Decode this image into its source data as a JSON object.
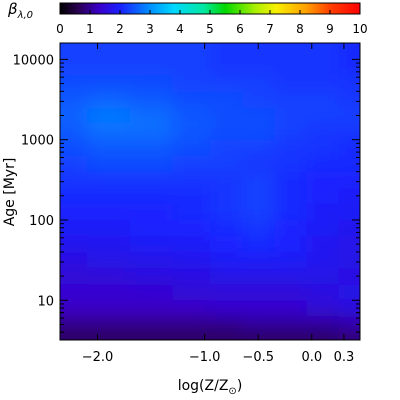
{
  "chart_data": {
    "type": "heatmap",
    "colorbar": {
      "label_symbol": "β",
      "label_subscript": "λ,0",
      "range": [
        0,
        10
      ],
      "ticks": [
        "0",
        "1",
        "2",
        "3",
        "4",
        "5",
        "6",
        "7",
        "8",
        "9",
        "10"
      ],
      "placement": "top"
    },
    "x_axis": {
      "label_main": "log(Z/Z",
      "label_subscript": "⊙",
      "label_close": ")",
      "range": [
        -2.35,
        0.45
      ],
      "ticks": [
        {
          "value": -2.0,
          "label": "−2.0"
        },
        {
          "value": -1.0,
          "label": "−1.0"
        },
        {
          "value": -0.5,
          "label": "−0.5"
        },
        {
          "value": 0.0,
          "label": "0.0"
        },
        {
          "value": 0.3,
          "label": "0.3"
        }
      ]
    },
    "y_axis": {
      "label": "Age [Myr]",
      "scale": "log",
      "range": [
        3.2,
        16000
      ],
      "ticks": [
        {
          "value": 10,
          "label": "10"
        },
        {
          "value": 100,
          "label": "100"
        },
        {
          "value": 1000,
          "label": "1000"
        },
        {
          "value": 10000,
          "label": "10000"
        }
      ]
    },
    "field_description_values": {
      "log_age_rows": [
        3.9,
        3.7,
        3.5,
        3.3,
        3.1,
        2.9,
        2.7,
        2.5,
        2.3,
        2.1,
        1.9,
        1.7,
        1.5,
        1.3,
        1.1,
        0.9,
        0.7,
        0.5
      ],
      "logz_cols": [
        -2.3,
        -1.9,
        -1.5,
        -1.1,
        -0.8,
        -0.5,
        -0.2,
        0.1,
        0.4
      ],
      "beta": [
        [
          2.3,
          2.3,
          2.3,
          2.3,
          2.2,
          2.2,
          2.2,
          2.2,
          2.1
        ],
        [
          2.4,
          2.4,
          2.4,
          2.3,
          2.3,
          2.3,
          2.2,
          2.2,
          2.2
        ],
        [
          2.5,
          2.6,
          2.5,
          2.4,
          2.4,
          2.3,
          2.3,
          2.3,
          2.2
        ],
        [
          2.6,
          2.8,
          2.7,
          2.5,
          2.4,
          2.4,
          2.3,
          2.3,
          2.3
        ],
        [
          2.5,
          2.7,
          2.7,
          2.5,
          2.4,
          2.4,
          2.3,
          2.2,
          2.2
        ],
        [
          2.4,
          2.5,
          2.5,
          2.4,
          2.3,
          2.3,
          2.2,
          2.2,
          2.1
        ],
        [
          2.3,
          2.4,
          2.4,
          2.3,
          2.3,
          2.2,
          2.2,
          2.1,
          2.1
        ],
        [
          2.2,
          2.2,
          2.2,
          2.2,
          2.2,
          2.3,
          2.1,
          2.0,
          2.0
        ],
        [
          2.1,
          2.1,
          2.1,
          2.1,
          2.2,
          2.3,
          2.1,
          2.0,
          1.9
        ],
        [
          2.0,
          2.0,
          2.0,
          2.1,
          2.2,
          2.3,
          2.1,
          1.9,
          1.9
        ],
        [
          1.9,
          1.9,
          2.0,
          2.0,
          2.1,
          2.2,
          2.0,
          1.9,
          1.8
        ],
        [
          1.8,
          1.8,
          1.9,
          1.9,
          2.0,
          2.1,
          2.0,
          1.8,
          1.7
        ],
        [
          1.6,
          1.7,
          1.7,
          1.8,
          1.9,
          1.9,
          1.9,
          1.8,
          1.7
        ],
        [
          1.5,
          1.5,
          1.6,
          1.6,
          1.7,
          1.7,
          1.7,
          1.7,
          1.6
        ],
        [
          1.4,
          1.4,
          1.4,
          1.5,
          1.5,
          1.5,
          1.5,
          1.6,
          1.7
        ],
        [
          1.3,
          1.3,
          1.3,
          1.3,
          1.4,
          1.4,
          1.4,
          1.5,
          1.6
        ],
        [
          0.9,
          0.9,
          0.9,
          0.9,
          0.9,
          1.0,
          1.0,
          1.0,
          1.1
        ],
        [
          0.7,
          0.7,
          0.7,
          0.7,
          0.7,
          0.7,
          0.7,
          0.7,
          0.8
        ]
      ]
    }
  }
}
